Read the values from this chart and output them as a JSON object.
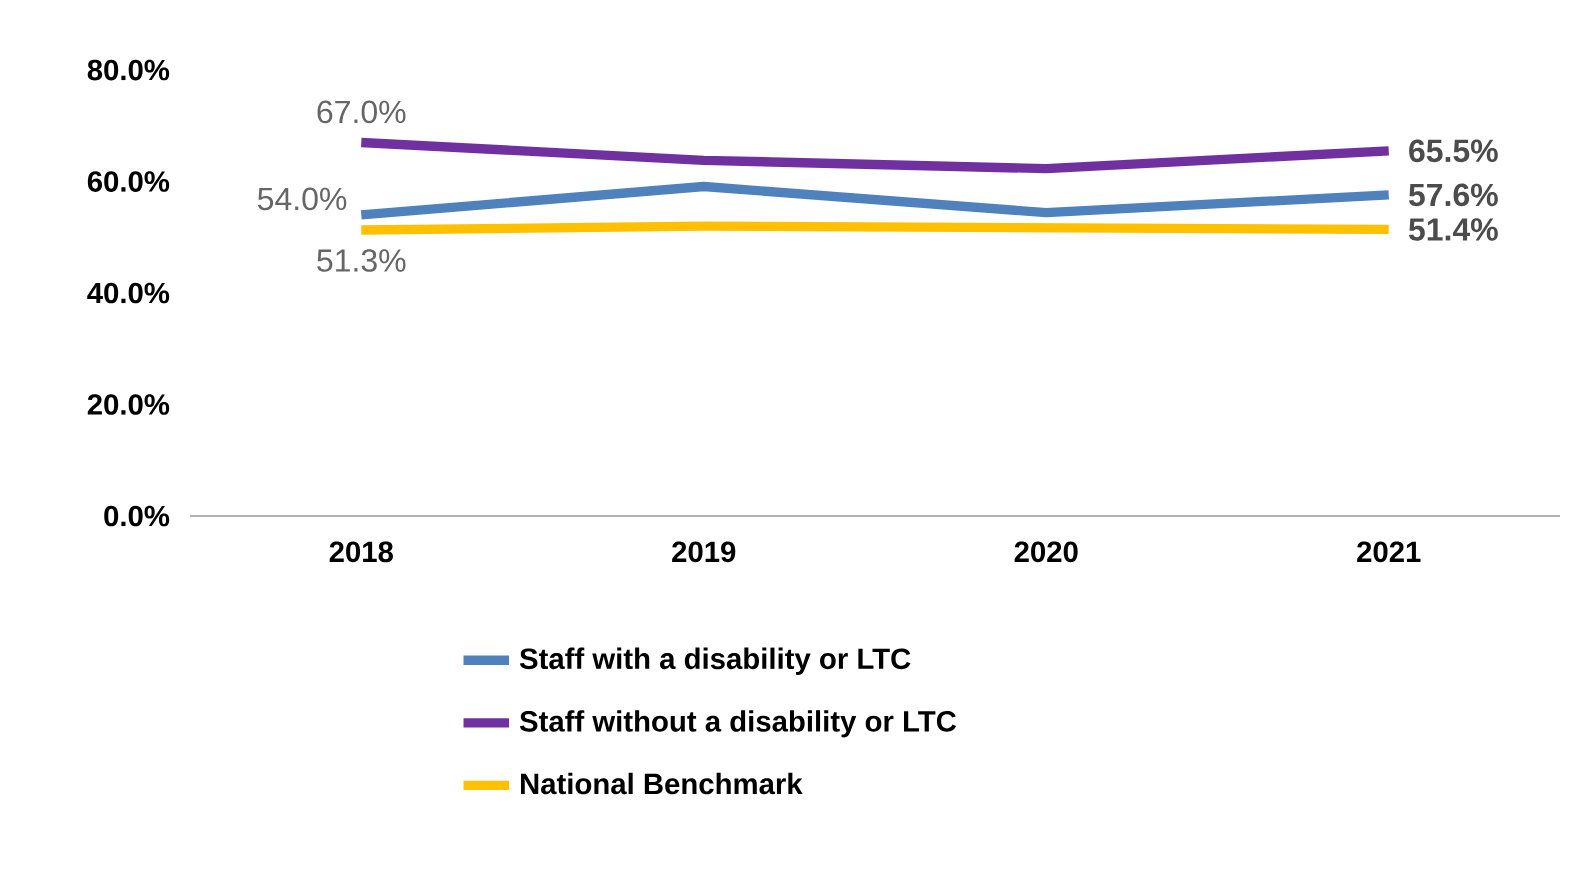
{
  "chart_data": {
    "type": "line",
    "categories": [
      "2018",
      "2019",
      "2020",
      "2021"
    ],
    "series": [
      {
        "name": "Staff with a disability or LTC",
        "color": "#4f81bd",
        "values": [
          54.0,
          59.1,
          54.4,
          57.6
        ],
        "value_labels": [
          "54.0%",
          null,
          null,
          "57.6%"
        ]
      },
      {
        "name": "Staff without a disability or LTC",
        "color": "#7030a0",
        "values": [
          67.0,
          63.8,
          62.3,
          65.5
        ],
        "value_labels": [
          "67.0%",
          null,
          null,
          "65.5%"
        ]
      },
      {
        "name": "National Benchmark",
        "color": "#ffc000",
        "values": [
          51.3,
          52.0,
          51.7,
          51.4
        ],
        "value_labels": [
          "51.3%",
          null,
          null,
          "51.4%"
        ]
      }
    ],
    "ylim": [
      0,
      80
    ],
    "yticks": [
      {
        "value": 0,
        "label": "0.0%"
      },
      {
        "value": 20,
        "label": "20.0%"
      },
      {
        "value": 40,
        "label": "40.0%"
      },
      {
        "value": 60,
        "label": "60.0%"
      },
      {
        "value": 80,
        "label": "80.0%"
      }
    ],
    "grid": false,
    "legend": "bottom",
    "marker": "none",
    "line_style": "solid"
  }
}
